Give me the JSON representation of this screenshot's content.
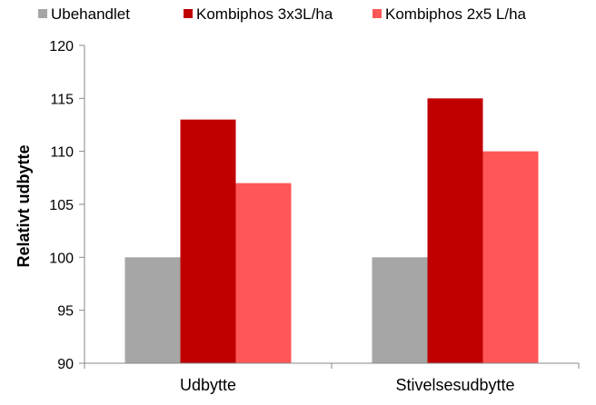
{
  "chart_data": {
    "type": "bar",
    "title": "",
    "xlabel": "",
    "ylabel": "Relativt udbytte",
    "categories": [
      "Udbytte",
      "Stivelsesudbytte"
    ],
    "series": [
      {
        "name": "Ubehandlet",
        "color": "#a6a6a6",
        "values": [
          100,
          100
        ]
      },
      {
        "name": "Kombiphos 3x3L/ha",
        "color": "#c00000",
        "values": [
          113,
          115
        ]
      },
      {
        "name": "Kombiphos 2x5 L/ha",
        "color": "#ff5757",
        "values": [
          107,
          110
        ]
      }
    ],
    "ylim": [
      90,
      120
    ],
    "yticks": [
      90,
      95,
      100,
      105,
      110,
      115,
      120
    ],
    "grid": false,
    "legend_position": "top"
  }
}
